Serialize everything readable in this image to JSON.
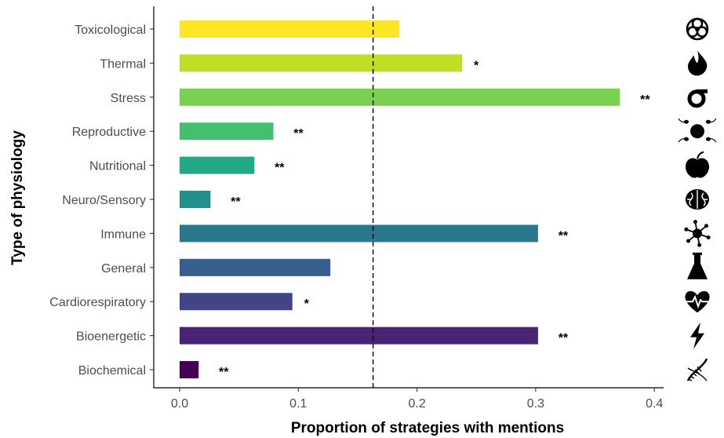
{
  "chart_data": {
    "type": "bar",
    "orientation": "horizontal",
    "title": "",
    "xlabel": "Proportion of strategies with mentions",
    "ylabel": "Type of physiology",
    "xlim": [
      -0.02,
      0.45
    ],
    "xticks": [
      0.0,
      0.1,
      0.2,
      0.3,
      0.4
    ],
    "xtick_labels": [
      "0.0",
      "0.1",
      "0.2",
      "0.3",
      "0.4"
    ],
    "reference_line": {
      "x": 0.163,
      "style": "dashed"
    },
    "grid": false,
    "legend": "none",
    "categories": [
      "Toxicological",
      "Thermal",
      "Stress",
      "Reproductive",
      "Nutritional",
      "Neuro/Sensory",
      "Immune",
      "General",
      "Cardiorespiratory",
      "Bioenergetic",
      "Biochemical"
    ],
    "values": [
      0.185,
      0.238,
      0.371,
      0.079,
      0.063,
      0.026,
      0.302,
      0.127,
      0.095,
      0.302,
      0.016
    ],
    "significance": [
      "",
      "*",
      "**",
      "**",
      "**",
      "**",
      "**",
      "",
      "*",
      "**",
      "**"
    ],
    "colors": [
      "#fde725",
      "#bddf26",
      "#7ad151",
      "#44bf70",
      "#22a884",
      "#21918c",
      "#2a788e",
      "#355f8d",
      "#414487",
      "#482475",
      "#440154"
    ],
    "icons": [
      "biohazard-icon",
      "flame-icon",
      "sigma-icon",
      "sperm-egg-icon",
      "apple-icon",
      "brain-icon",
      "immune-cell-icon",
      "flask-icon",
      "heartbeat-icon",
      "lightning-icon",
      "dna-icon"
    ]
  }
}
